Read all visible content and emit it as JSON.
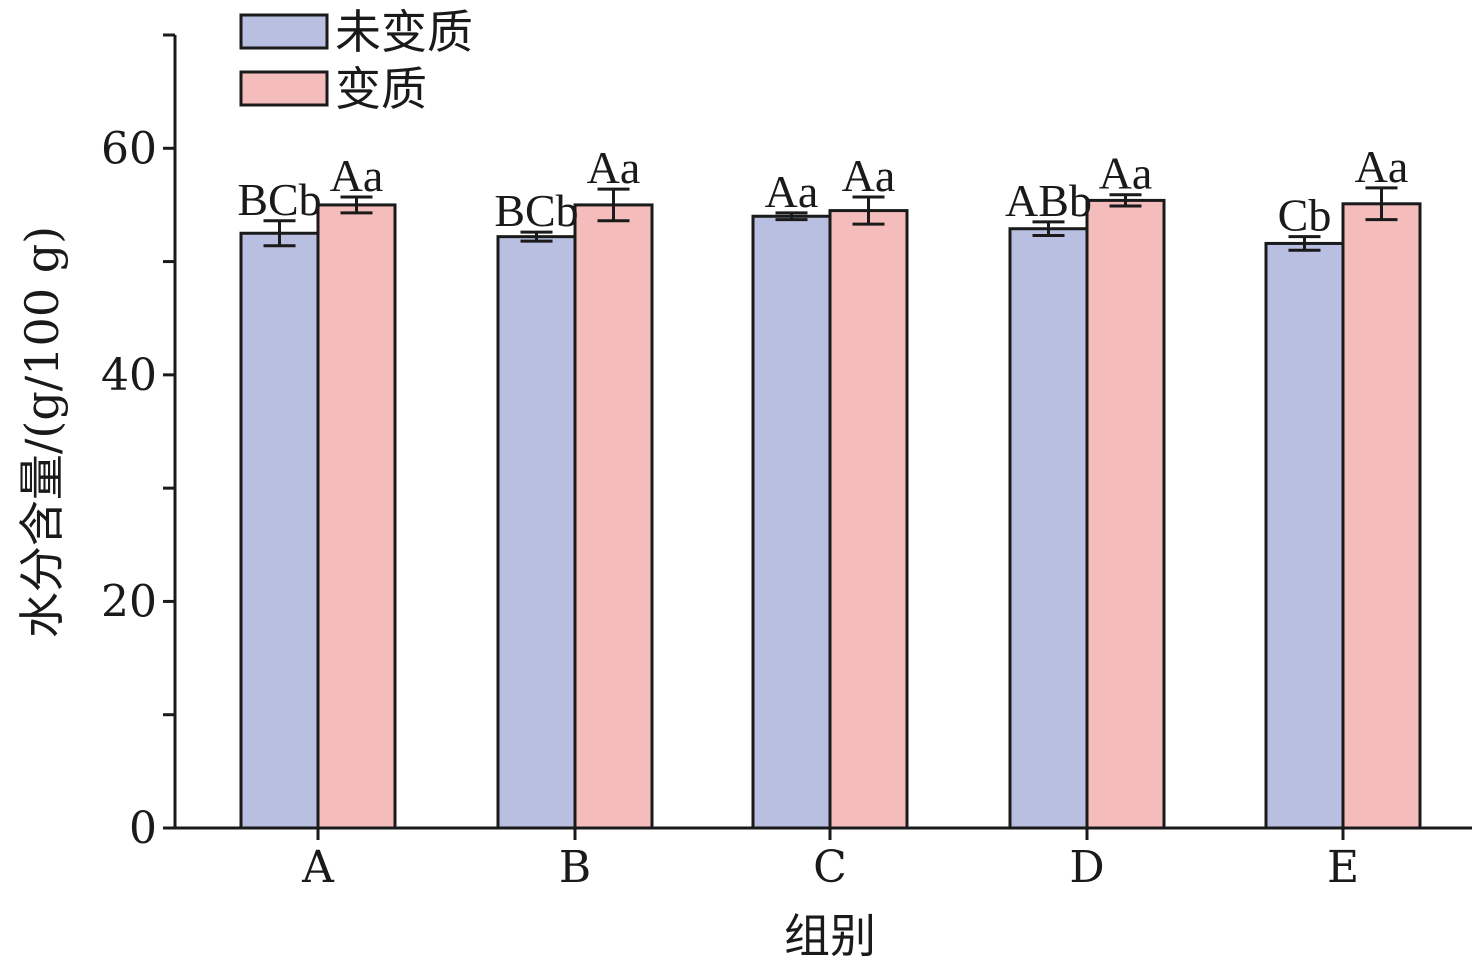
{
  "chart_data": {
    "type": "bar",
    "title": "",
    "xlabel": "组别",
    "ylabel": "水分含量/(g/100 g)",
    "ylim": [
      0,
      70
    ],
    "yticks": [
      0,
      20,
      40,
      60
    ],
    "categories": [
      "A",
      "B",
      "C",
      "D",
      "E"
    ],
    "series": [
      {
        "name": "未变质",
        "color": "#b8bfe0",
        "values": [
          52.5,
          52.2,
          54.0,
          52.9,
          51.6
        ],
        "errors": [
          1.1,
          0.4,
          0.3,
          0.6,
          0.6
        ],
        "labels": [
          "BCb",
          "BCb",
          "Aa",
          "ABb",
          "Cb"
        ]
      },
      {
        "name": "变质",
        "color": "#f5bcbc",
        "values": [
          55.0,
          55.0,
          54.5,
          55.4,
          55.1
        ],
        "errors": [
          0.7,
          1.4,
          1.2,
          0.5,
          1.4
        ],
        "labels": [
          "Aa",
          "Aa",
          "Aa",
          "Aa",
          "Aa"
        ]
      }
    ],
    "legend_position": "top-left",
    "grid": false
  }
}
